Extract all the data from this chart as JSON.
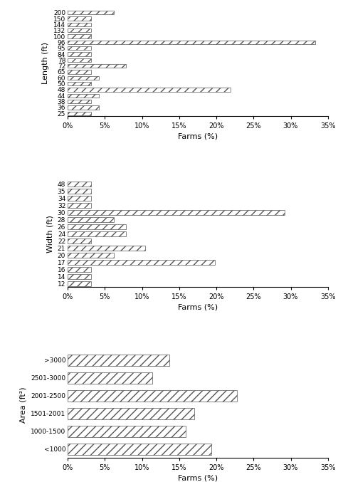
{
  "length": {
    "categories": [
      "200",
      "150",
      "144",
      "132",
      "100",
      "96",
      "95",
      "84",
      "78",
      "72",
      "65",
      "60",
      "50",
      "48",
      "44",
      "38",
      "36",
      "25"
    ],
    "values": [
      6.25,
      3.125,
      3.125,
      3.125,
      3.125,
      33.33,
      3.125,
      3.125,
      3.125,
      7.81,
      3.125,
      4.17,
      3.125,
      21.88,
      4.17,
      3.125,
      4.17,
      3.125
    ],
    "ylabel": "Length (ft)",
    "xlabel": "Farms (%)"
  },
  "width": {
    "categories": [
      "48",
      "35",
      "34",
      "32",
      "30",
      "28",
      "26",
      "24",
      "22",
      "21",
      "20",
      "17",
      "16",
      "14",
      "12"
    ],
    "values": [
      3.125,
      3.125,
      3.125,
      3.125,
      29.17,
      6.25,
      7.81,
      7.81,
      3.125,
      10.42,
      6.25,
      19.79,
      3.125,
      3.125,
      3.125
    ],
    "ylabel": "Width (ft)",
    "xlabel": "Farms (%)"
  },
  "area": {
    "categories": [
      ">3000",
      "2501-3000",
      "2001-2500",
      "1501-2001",
      "1000-1500",
      "<1000"
    ],
    "values": [
      13.64,
      11.36,
      22.73,
      17.05,
      15.91,
      19.32
    ],
    "ylabel": "Area (ft²)",
    "xlabel": "Farms (%)"
  },
  "bar_color": "#ffffff",
  "bar_edgecolor": "#555555",
  "hatch": "///",
  "xlim": [
    0,
    35
  ],
  "xticks": [
    0,
    5,
    10,
    15,
    20,
    25,
    30,
    35
  ],
  "xtick_labels": [
    "0%",
    "5%",
    "10%",
    "15%",
    "20%",
    "25%",
    "30%",
    "35%"
  ]
}
